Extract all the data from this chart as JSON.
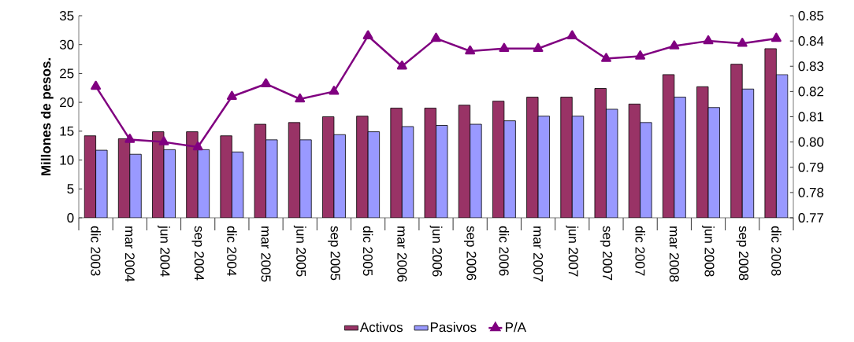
{
  "chart_data": {
    "type": "bar",
    "ylabel": "Millones de pesos.",
    "categories": [
      "dic 2003",
      "mar 2004",
      "jun 2004",
      "sep 2004",
      "dic 2004",
      "mar 2005",
      "jun 2005",
      "sep 2005",
      "dic 2005",
      "mar 2006",
      "jun 2006",
      "sep 2006",
      "dic 2006",
      "mar 2007",
      "jun 2007",
      "sep 2007",
      "dic 2007",
      "mar 2008",
      "jun 2008",
      "sep 2008",
      "dic 2008"
    ],
    "series": [
      {
        "name": "Activos",
        "color": "#993366",
        "values": [
          14.2,
          13.7,
          14.9,
          14.9,
          14.2,
          16.2,
          16.5,
          17.5,
          17.6,
          19.0,
          19.0,
          19.5,
          20.2,
          20.9,
          20.9,
          22.4,
          19.7,
          24.8,
          22.7,
          26.6,
          29.3
        ]
      },
      {
        "name": "Pasivos",
        "color": "#9999ff",
        "values": [
          11.7,
          11.0,
          11.8,
          11.8,
          11.4,
          13.5,
          13.5,
          14.4,
          14.9,
          15.8,
          16.0,
          16.2,
          16.8,
          17.6,
          17.6,
          18.8,
          16.5,
          20.9,
          19.1,
          22.3,
          24.8
        ]
      },
      {
        "name": "P/A",
        "type": "line",
        "axis": "y2",
        "color": "#800080",
        "marker": "triangle",
        "values": [
          0.822,
          0.801,
          0.8,
          0.798,
          0.818,
          0.823,
          0.817,
          0.82,
          0.842,
          0.83,
          0.841,
          0.836,
          0.837,
          0.837,
          0.842,
          0.833,
          0.834,
          0.838,
          0.84,
          0.839,
          0.841
        ]
      }
    ],
    "ylim": [
      0,
      35
    ],
    "yticks": [
      0,
      5,
      10,
      15,
      20,
      25,
      30,
      35
    ],
    "y2lim": [
      0.77,
      0.85
    ],
    "y2ticks": [
      0.77,
      0.78,
      0.79,
      {
        "value": 0.8,
        "label": "0.80"
      },
      0.81,
      0.82,
      0.83,
      0.84,
      0.85
    ],
    "legend": "bottom",
    "grid": false
  }
}
